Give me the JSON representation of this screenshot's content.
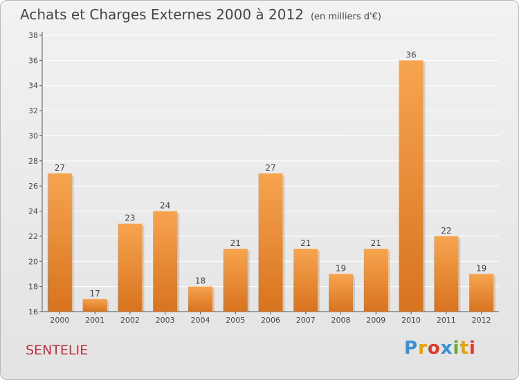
{
  "header": {
    "title": "Achats et Charges Externes 2000 à 2012",
    "unit": "(en milliers d'€)"
  },
  "footer": {
    "commune": "SENTELIE",
    "brand_letters": [
      "P",
      "r",
      "o",
      "x",
      "i",
      "t",
      "i"
    ],
    "brand_colors": [
      "#3a8fd6",
      "#e8a000",
      "#d93a2b",
      "#3a8fd6",
      "#6aa82e",
      "#e8a000",
      "#d93a2b"
    ]
  },
  "colors": {
    "bar_top": "#f7a44f",
    "bar_bottom": "#d8731f",
    "axis": "#555555",
    "grid": "#ffffff"
  },
  "chart_data": {
    "type": "bar",
    "title": "Achats et Charges Externes 2000 à 2012",
    "categories": [
      "2000",
      "2001",
      "2002",
      "2003",
      "2004",
      "2005",
      "2006",
      "2007",
      "2008",
      "2009",
      "2010",
      "2011",
      "2012"
    ],
    "values": [
      27,
      17,
      23,
      24,
      18,
      21,
      27,
      21,
      19,
      21,
      36,
      22,
      19
    ],
    "ylim": [
      16,
      38
    ],
    "yticks": [
      16,
      18,
      20,
      22,
      24,
      26,
      28,
      30,
      32,
      34,
      36,
      38
    ],
    "grid": true,
    "legend": "none"
  }
}
